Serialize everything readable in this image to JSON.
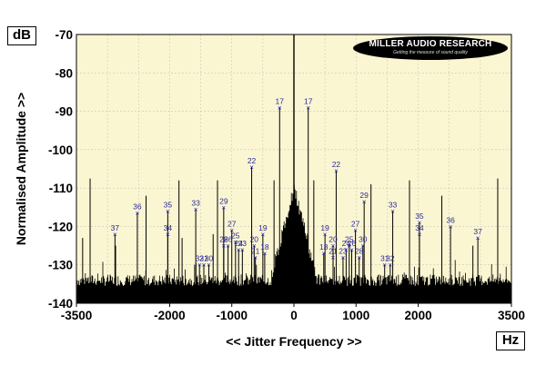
{
  "chart_data": {
    "type": "line",
    "title": "",
    "xlabel": "<< Jitter Frequency >>",
    "ylabel": "Normalised Amplitude >>",
    "x_unit": "Hz",
    "y_unit": "dB",
    "xlim": [
      -3500,
      3500
    ],
    "ylim": [
      -140,
      -70
    ],
    "x_ticks": [
      -3500,
      -2000,
      -1000,
      0,
      1000,
      2000,
      3500
    ],
    "x_tick_labels": [
      "-3500",
      "-2000",
      "-1000",
      "0",
      "1000",
      "2000",
      "3500"
    ],
    "y_ticks": [
      -70,
      -80,
      -90,
      -100,
      -110,
      -120,
      -130,
      -140
    ],
    "y_tick_labels": [
      "-70",
      "-80",
      "-90",
      "-100",
      "-110",
      "-120",
      "-130",
      "-140"
    ],
    "grid": true,
    "noise_floor_db": -134,
    "central_peak": {
      "x": 0,
      "y": -70
    },
    "spurs": [
      {
        "x": -2880,
        "y": -122,
        "label": "37"
      },
      {
        "x": -2520,
        "y": -116.5,
        "label": "36"
      },
      {
        "x": -2030,
        "y": -116,
        "label": "35"
      },
      {
        "x": -2030,
        "y": -122,
        "label": "34"
      },
      {
        "x": -1580,
        "y": -115.5,
        "label": "33"
      },
      {
        "x": -1520,
        "y": -130,
        "label": "32"
      },
      {
        "x": -1450,
        "y": -130,
        "label": "31"
      },
      {
        "x": -1370,
        "y": -130,
        "label": "30"
      },
      {
        "x": -1130,
        "y": -115,
        "label": "29"
      },
      {
        "x": -1130,
        "y": -125,
        "label": "28"
      },
      {
        "x": -1000,
        "y": -121,
        "label": "27"
      },
      {
        "x": -1060,
        "y": -125,
        "label": "26"
      },
      {
        "x": -940,
        "y": -124,
        "label": "25"
      },
      {
        "x": -890,
        "y": -126,
        "label": "24"
      },
      {
        "x": -830,
        "y": -126,
        "label": "23"
      },
      {
        "x": -680,
        "y": -104.5,
        "label": "22"
      },
      {
        "x": -620,
        "y": -128,
        "label": "21"
      },
      {
        "x": -640,
        "y": -125,
        "label": "20"
      },
      {
        "x": -500,
        "y": -122,
        "label": "19"
      },
      {
        "x": -470,
        "y": -127,
        "label": "18"
      },
      {
        "x": -230,
        "y": -89,
        "label": "17"
      },
      {
        "x": 230,
        "y": -89,
        "label": "17"
      },
      {
        "x": 480,
        "y": -127,
        "label": "18"
      },
      {
        "x": 500,
        "y": -122,
        "label": "19"
      },
      {
        "x": 630,
        "y": -125,
        "label": "20"
      },
      {
        "x": 630,
        "y": -128,
        "label": "21"
      },
      {
        "x": 680,
        "y": -105.5,
        "label": "22"
      },
      {
        "x": 790,
        "y": -128,
        "label": "23"
      },
      {
        "x": 840,
        "y": -126,
        "label": "24"
      },
      {
        "x": 890,
        "y": -125,
        "label": "25"
      },
      {
        "x": 930,
        "y": -126,
        "label": "26"
      },
      {
        "x": 990,
        "y": -121,
        "label": "27"
      },
      {
        "x": 1050,
        "y": -128,
        "label": "28"
      },
      {
        "x": 1130,
        "y": -113.5,
        "label": "29"
      },
      {
        "x": 1110,
        "y": -125,
        "label": "30"
      },
      {
        "x": 1460,
        "y": -130,
        "label": "31"
      },
      {
        "x": 1550,
        "y": -130,
        "label": "32"
      },
      {
        "x": 1590,
        "y": -116,
        "label": "33"
      },
      {
        "x": 2020,
        "y": -122,
        "label": "34"
      },
      {
        "x": 2020,
        "y": -119,
        "label": "35"
      },
      {
        "x": 2520,
        "y": -120,
        "label": "36"
      },
      {
        "x": 2960,
        "y": -123,
        "label": "37"
      }
    ],
    "unlabeled_spurs": [
      {
        "x": -3400,
        "y": -123
      },
      {
        "x": -3280,
        "y": -107.5
      },
      {
        "x": -2870,
        "y": -125
      },
      {
        "x": -2380,
        "y": -112
      },
      {
        "x": -1850,
        "y": -108
      },
      {
        "x": -1800,
        "y": -123
      },
      {
        "x": -1300,
        "y": -122
      },
      {
        "x": -1230,
        "y": -108
      },
      {
        "x": -320,
        "y": -108
      },
      {
        "x": 320,
        "y": -108
      },
      {
        "x": 1240,
        "y": -109
      },
      {
        "x": 1860,
        "y": -108
      },
      {
        "x": 2380,
        "y": -112
      },
      {
        "x": 2880,
        "y": -125
      },
      {
        "x": 3280,
        "y": -107.5
      }
    ]
  },
  "branding": {
    "logo_text": "MILLER AUDIO RESEARCH",
    "logo_tagline": "Getting the measure of sound quality"
  }
}
